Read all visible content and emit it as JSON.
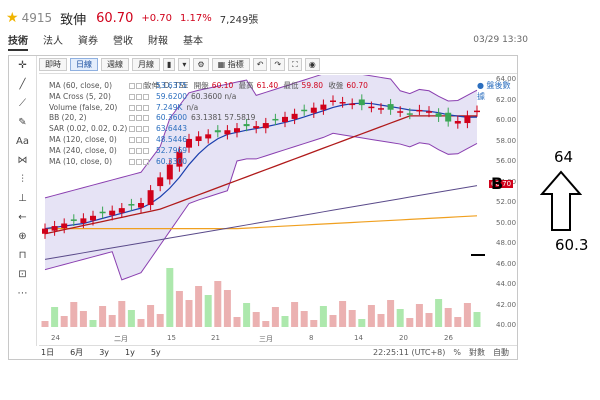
{
  "header": {
    "code": "4915",
    "name": "致伸",
    "price": "60.70",
    "change": "+0.70",
    "percent": "1.17%",
    "volume": "7,249張"
  },
  "nav_tabs": [
    {
      "label": "技術",
      "active": true
    },
    {
      "label": "法人",
      "active": false
    },
    {
      "label": "資券",
      "active": false
    },
    {
      "label": "營收",
      "active": false
    },
    {
      "label": "財報",
      "active": false
    },
    {
      "label": "基本",
      "active": false
    }
  ],
  "datetime": "03/29 13:30",
  "toolbar": {
    "intraday": "即時",
    "daily": "日線",
    "weekly": "週線",
    "monthly": "月線",
    "indicators": "指標"
  },
  "left_tools": {
    "text_tool": "Aa"
  },
  "ohlc": {
    "title": "致伸, D, TSE",
    "open_label": "開盤",
    "open": "60.10",
    "high_label": "最高",
    "high": "61.40",
    "low_label": "最低",
    "low": "59.80",
    "close_label": "收盤",
    "close": "60.70"
  },
  "alert_label": "盤後數據",
  "legend": [
    {
      "name": "MA (60, close, 0)",
      "values": "53.6375",
      "extra": ""
    },
    {
      "name": "MA Cross (5, 20)",
      "values": "59.6200",
      "extra": "60.3600  n/a"
    },
    {
      "name": "Volume (false, 20)",
      "values": "7.249K",
      "extra": "n/a"
    },
    {
      "name": "BB (20, 2)",
      "values": "60.3600",
      "extra": "63.1381  57.5819"
    },
    {
      "name": "SAR (0.02, 0.02, 0.2)",
      "values": "63.6443",
      "extra": ""
    },
    {
      "name": "MA (120, close, 0)",
      "values": "48.5446",
      "extra": ""
    },
    {
      "name": "MA (240, close, 0)",
      "values": "52.7969",
      "extra": ""
    },
    {
      "name": "MA (10, close, 0)",
      "values": "60.3300",
      "extra": ""
    }
  ],
  "y_axis": [
    "64.00",
    "62.00",
    "60.00",
    "58.00",
    "56.00",
    "54.00",
    "52.00",
    "50.00",
    "48.00",
    "46.00",
    "44.00",
    "42.00",
    "40.00"
  ],
  "last_price_tag": "60.70",
  "x_axis": [
    "24",
    "二月",
    "15",
    "21",
    "三月",
    "8",
    "14",
    "20",
    "26"
  ],
  "bottom": {
    "periods": [
      "1日",
      "6月",
      "3y",
      "1y",
      "5y"
    ],
    "time": "22:25:11 (UTC+8)",
    "percent": "%",
    "log": "對數",
    "auto": "自動"
  },
  "annotations": {
    "b": "B",
    "top": "64",
    "bottom": "60.3"
  },
  "colors": {
    "up": "#d0021b",
    "down": "#3aa655",
    "bb_fill": "#e6e3f5",
    "bb_line": "#8a3fb0",
    "ma10": "#1b3fae",
    "ma20": "#b01a1a",
    "ma60": "#5a4a8a",
    "ma240": "#f0a020"
  }
}
